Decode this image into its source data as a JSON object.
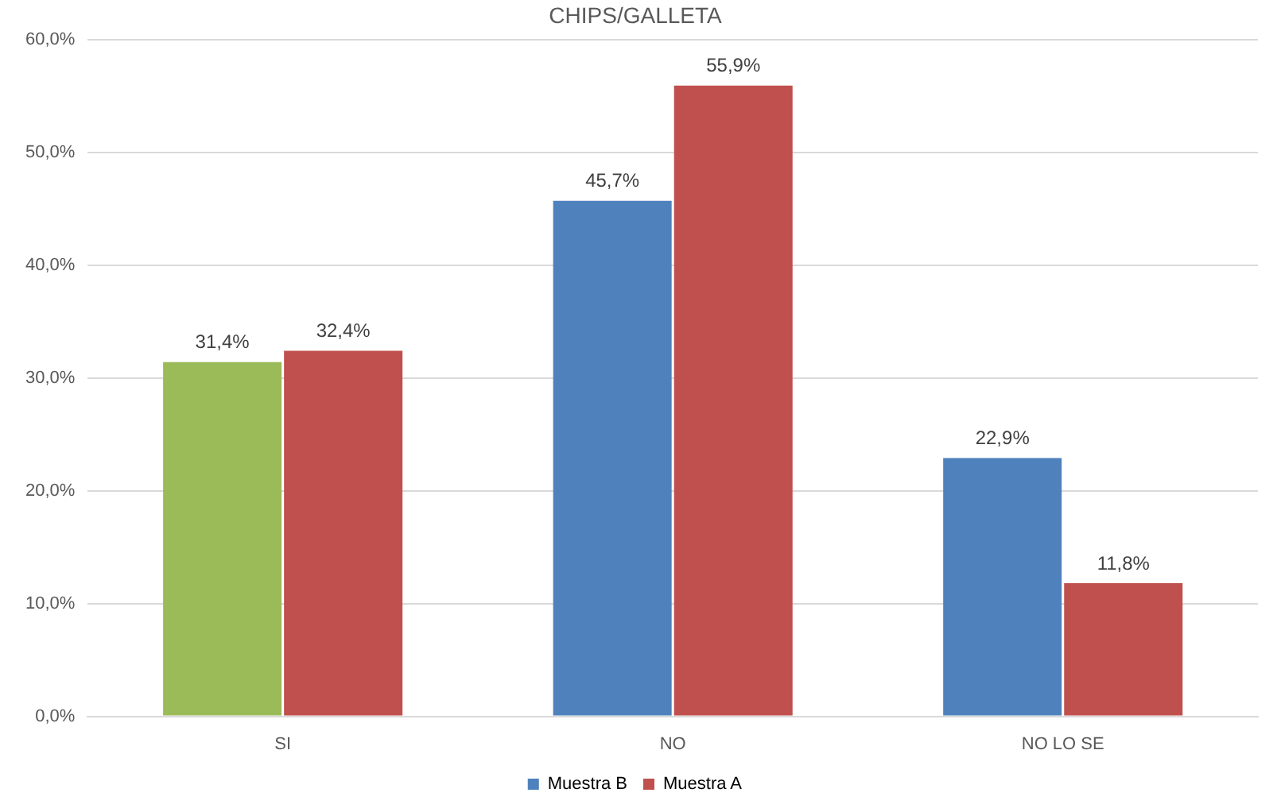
{
  "chart_data": {
    "type": "bar",
    "title": "CHIPS/GALLETA",
    "categories": [
      "SI",
      "NO",
      "NO LO SE"
    ],
    "series": [
      {
        "name": "Muestra B",
        "color": "#4f81bd",
        "colors": [
          "#9bbb59",
          "#4f81bd",
          "#4f81bd"
        ],
        "values": [
          31.4,
          45.7,
          22.9
        ],
        "value_labels": [
          "31,4%",
          "45,7%",
          "22,9%"
        ]
      },
      {
        "name": "Muestra A",
        "color": "#c0504d",
        "values": [
          32.4,
          55.9,
          11.8
        ],
        "value_labels": [
          "32,4%",
          "55,9%",
          "11,8%"
        ]
      }
    ],
    "ylim": [
      0,
      60
    ],
    "yticks": [
      {
        "value": 0,
        "label": "0,0%"
      },
      {
        "value": 10,
        "label": "10,0%"
      },
      {
        "value": 20,
        "label": "20,0%"
      },
      {
        "value": 30,
        "label": "30,0%"
      },
      {
        "value": 40,
        "label": "40,0%"
      },
      {
        "value": 50,
        "label": "50,0%"
      },
      {
        "value": 60,
        "label": "60,0%"
      }
    ],
    "grid": "y",
    "legend": "bottom"
  }
}
